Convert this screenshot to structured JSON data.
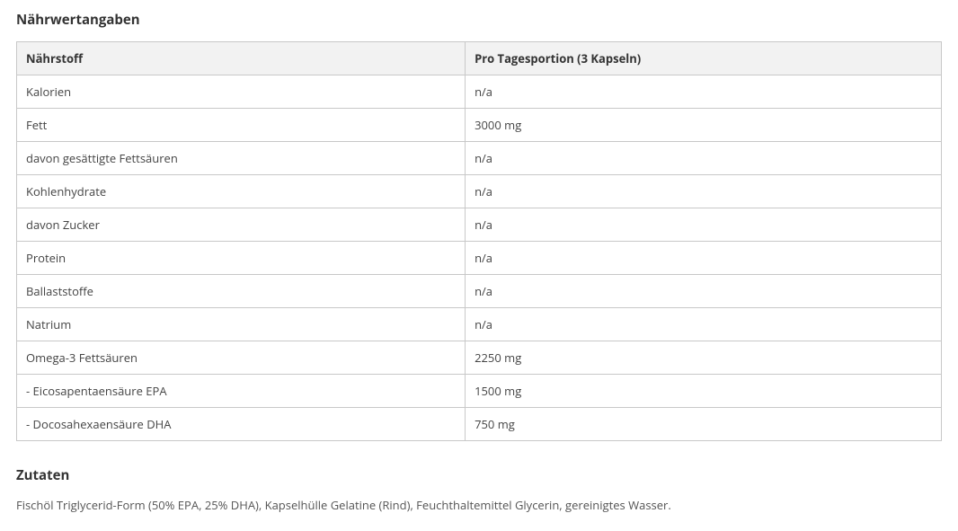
{
  "nutrition": {
    "heading": "Nährwertangaben",
    "columns": [
      "Nährstoff",
      "Pro Tagesportion (3 Kapseln)"
    ],
    "rows": [
      {
        "name": "Kalorien",
        "value": "n/a"
      },
      {
        "name": "Fett",
        "value": "3000 mg"
      },
      {
        "name": "davon gesättigte Fettsäuren",
        "value": "n/a"
      },
      {
        "name": "Kohlenhydrate",
        "value": "n/a"
      },
      {
        "name": "davon Zucker",
        "value": "n/a"
      },
      {
        "name": "Protein",
        "value": "n/a"
      },
      {
        "name": "Ballaststoffe",
        "value": "n/a"
      },
      {
        "name": "Natrium",
        "value": "n/a"
      },
      {
        "name": "Omega-3 Fettsäuren",
        "value": "2250 mg"
      },
      {
        "name": " - Eicosapentaensäure EPA",
        "value": "1500 mg"
      },
      {
        "name": " - Docosahexaensäure DHA",
        "value": "750 mg"
      }
    ]
  },
  "ingredients": {
    "heading": "Zutaten",
    "text": "Fischöl Triglycerid-Form (50% EPA, 25% DHA), Kapselhülle Gelatine (Rind), Feuchthaltemittel Glycerin, gereinigtes Wasser."
  },
  "style": {
    "header_bg": "#f2f2f2",
    "border_color": "#c8c8c8",
    "text_color": "#444444",
    "heading_color": "#333333"
  }
}
